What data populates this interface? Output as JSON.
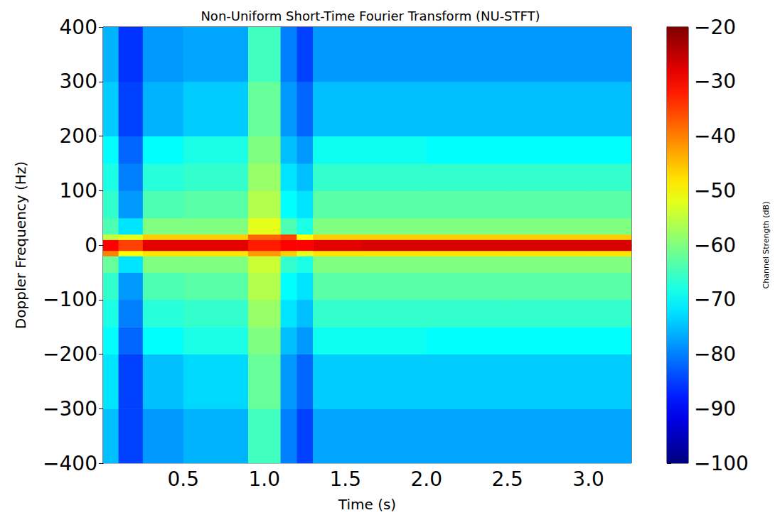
{
  "chart_data": {
    "type": "heatmap",
    "title": "Non-Uniform Short-Time Fourier Transform (NU-STFT)",
    "x_label": "Time (s)",
    "y_label": "Doppler Frequency (Hz)",
    "xlim": [
      0.005,
      3.265
    ],
    "xticks": [
      0.5,
      {
        "value": 1.0,
        "label": "1.0"
      },
      1.5,
      {
        "value": 2.0,
        "label": "2.0"
      },
      2.5,
      {
        "value": 3.0,
        "label": "3.0"
      }
    ],
    "ylim": [
      -400,
      400
    ],
    "yticks": [
      {
        "value": -400,
        "label": "−400"
      },
      {
        "value": -300,
        "label": "−300"
      },
      {
        "value": -200,
        "label": "−200"
      },
      {
        "value": -100,
        "label": "−100"
      },
      0,
      100,
      200,
      300,
      400
    ],
    "grid": true,
    "x_edges": [
      0.005,
      0.1,
      0.25,
      0.5,
      0.9,
      1.1,
      1.2,
      1.3,
      1.6,
      2.0,
      2.5,
      3.0,
      3.265
    ],
    "y_edges": [
      -400,
      -300,
      -200,
      -150,
      -100,
      -50,
      -20,
      -10,
      10,
      20,
      50,
      100,
      150,
      200,
      300,
      400
    ],
    "cells": [
      [
        -75,
        -85,
        -78,
        -76,
        -65,
        -80,
        -85,
        -77,
        -77,
        -77,
        -77,
        -77
      ],
      [
        -72,
        -85,
        -75,
        -73,
        -62,
        -78,
        -82,
        -74,
        -74,
        -74,
        -74,
        -74
      ],
      [
        -70,
        -82,
        -70,
        -68,
        -60,
        -75,
        -78,
        -69,
        -69,
        -70,
        -70,
        -70
      ],
      [
        -68,
        -80,
        -67,
        -66,
        -58,
        -72,
        -75,
        -66,
        -66,
        -66,
        -66,
        -66
      ],
      [
        -66,
        -78,
        -64,
        -63,
        -56,
        -70,
        -72,
        -63,
        -63,
        -63,
        -63,
        -63
      ],
      [
        -62,
        -72,
        -60,
        -60,
        -54,
        -66,
        -68,
        -60,
        -60,
        -60,
        -60,
        -60
      ],
      [
        -40,
        -50,
        -48,
        -48,
        -42,
        -46,
        -52,
        -48,
        -48,
        -48,
        -48,
        -48
      ],
      [
        -30,
        -35,
        -28,
        -28,
        -32,
        -30,
        -30,
        -28,
        -27,
        -27,
        -27,
        -27
      ],
      [
        -55,
        -52,
        -46,
        -46,
        -38,
        -35,
        -50,
        -46,
        -46,
        -46,
        -46,
        -46
      ],
      [
        -64,
        -72,
        -60,
        -60,
        -52,
        -64,
        -68,
        -60,
        -60,
        -60,
        -60,
        -60
      ],
      [
        -66,
        -78,
        -64,
        -63,
        -56,
        -70,
        -72,
        -63,
        -63,
        -63,
        -63,
        -63
      ],
      [
        -68,
        -80,
        -67,
        -66,
        -58,
        -72,
        -75,
        -66,
        -66,
        -66,
        -66,
        -66
      ],
      [
        -70,
        -82,
        -70,
        -68,
        -60,
        -75,
        -78,
        -69,
        -69,
        -70,
        -70,
        -70
      ],
      [
        -74,
        -85,
        -76,
        -74,
        -62,
        -78,
        -82,
        -75,
        -75,
        -75,
        -75,
        -75
      ],
      [
        -76,
        -86,
        -78,
        -77,
        -65,
        -80,
        -85,
        -78,
        -78,
        -78,
        -78,
        -78
      ]
    ],
    "colorbar": {
      "label": "Channel Strength (dB)",
      "range": [
        -100,
        -20
      ],
      "ticks": [
        {
          "value": -100,
          "label": "−100"
        },
        {
          "value": -90,
          "label": "−90"
        },
        {
          "value": -80,
          "label": "−80"
        },
        {
          "value": -70,
          "label": "−70"
        },
        {
          "value": -60,
          "label": "−60"
        },
        {
          "value": -50,
          "label": "−50"
        },
        {
          "value": -40,
          "label": "−40"
        },
        {
          "value": -30,
          "label": "−30"
        },
        {
          "value": -20,
          "label": "−20"
        }
      ]
    }
  }
}
